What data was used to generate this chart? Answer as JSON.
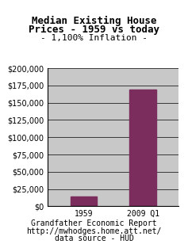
{
  "title_line1": "Median Existing House",
  "title_line2": "Prices - 1959 vs today",
  "subtitle": "- 1,100% Inflation -",
  "categories": [
    "1959",
    "2009 Q1"
  ],
  "values": [
    14000,
    169000
  ],
  "bar_color": "#7b2d5e",
  "ylim": [
    0,
    200000
  ],
  "yticks": [
    0,
    25000,
    50000,
    75000,
    100000,
    125000,
    150000,
    175000,
    200000
  ],
  "plot_bg_color": "#c8c8c8",
  "outer_bg_color": "#ffffff",
  "footer_line1": "Grandfather Economic Report",
  "footer_line2": "http://mwhodges.home.att.net/",
  "footer_line3": "data source - HUD",
  "title_fontsize": 9.0,
  "subtitle_fontsize": 8.0,
  "tick_fontsize": 7.0,
  "footer_fontsize": 7.0,
  "bar_width": 0.45
}
